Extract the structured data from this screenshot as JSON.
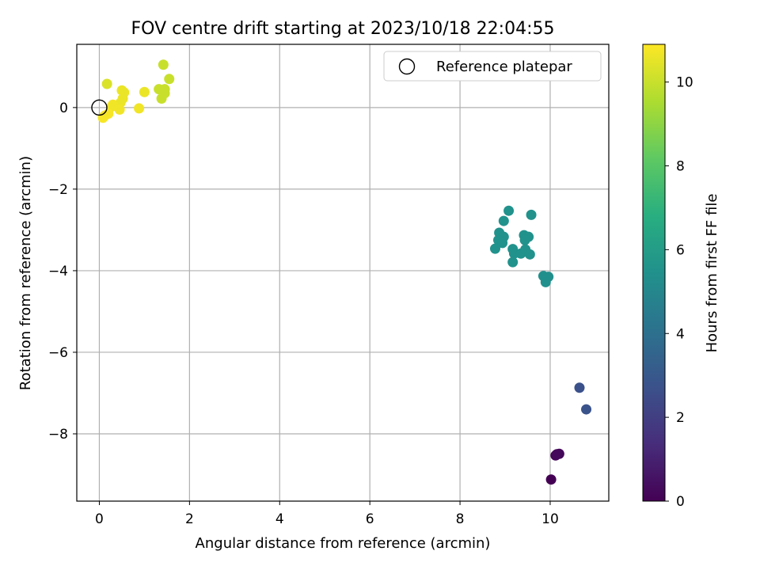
{
  "chart_data": {
    "type": "scatter",
    "title": "FOV centre drift starting at 2023/10/18 22:04:55",
    "xlabel": "Angular distance from reference (arcmin)",
    "ylabel": "Rotation from reference (arcmin)",
    "xlim": [
      -0.5,
      11.3
    ],
    "ylim": [
      -9.65,
      1.55
    ],
    "x_ticks": [
      0,
      2,
      4,
      6,
      8,
      10
    ],
    "y_ticks": [
      -8,
      -6,
      -4,
      -2,
      0
    ],
    "grid": true,
    "legend": {
      "entries": [
        "Reference platepar"
      ],
      "placement": "top-right"
    },
    "reference_point": {
      "x": 0,
      "y": 0,
      "marker": "open circle"
    },
    "colorbar": {
      "label": "Hours from first FF file",
      "range": [
        0,
        10.9
      ],
      "ticks": [
        0,
        2,
        4,
        6,
        8,
        10
      ],
      "colormap": "viridis"
    },
    "points": [
      {
        "x": 10.02,
        "y": -9.12,
        "t": 0.0
      },
      {
        "x": 10.12,
        "y": -8.53,
        "t": 0.1
      },
      {
        "x": 10.2,
        "y": -8.49,
        "t": 0.2
      },
      {
        "x": 10.15,
        "y": -8.5,
        "t": 0.25
      },
      {
        "x": 10.65,
        "y": -6.87,
        "t": 2.7
      },
      {
        "x": 10.8,
        "y": -7.4,
        "t": 2.75
      },
      {
        "x": 9.08,
        "y": -2.53,
        "t": 5.5
      },
      {
        "x": 9.58,
        "y": -2.63,
        "t": 5.5
      },
      {
        "x": 8.97,
        "y": -2.78,
        "t": 5.5
      },
      {
        "x": 8.87,
        "y": -3.07,
        "t": 5.5
      },
      {
        "x": 8.97,
        "y": -3.17,
        "t": 5.5
      },
      {
        "x": 8.85,
        "y": -3.25,
        "t": 5.5
      },
      {
        "x": 8.94,
        "y": -3.32,
        "t": 5.5
      },
      {
        "x": 8.78,
        "y": -3.46,
        "t": 5.5
      },
      {
        "x": 9.42,
        "y": -3.13,
        "t": 5.5
      },
      {
        "x": 9.52,
        "y": -3.17,
        "t": 5.5
      },
      {
        "x": 9.44,
        "y": -3.25,
        "t": 5.5
      },
      {
        "x": 9.17,
        "y": -3.47,
        "t": 5.5
      },
      {
        "x": 9.2,
        "y": -3.58,
        "t": 5.5
      },
      {
        "x": 9.35,
        "y": -3.58,
        "t": 5.5
      },
      {
        "x": 9.45,
        "y": -3.48,
        "t": 5.5
      },
      {
        "x": 9.55,
        "y": -3.6,
        "t": 5.5
      },
      {
        "x": 9.17,
        "y": -3.79,
        "t": 5.5
      },
      {
        "x": 9.85,
        "y": -4.13,
        "t": 5.4
      },
      {
        "x": 9.96,
        "y": -4.15,
        "t": 5.4
      },
      {
        "x": 9.9,
        "y": -4.28,
        "t": 5.4
      },
      {
        "x": 1.42,
        "y": 1.05,
        "t": 10.0
      },
      {
        "x": 1.55,
        "y": 0.7,
        "t": 10.0
      },
      {
        "x": 0.17,
        "y": 0.58,
        "t": 10.3
      },
      {
        "x": 1.45,
        "y": 0.45,
        "t": 10.0
      },
      {
        "x": 1.32,
        "y": 0.45,
        "t": 10.0
      },
      {
        "x": 1.45,
        "y": 0.35,
        "t": 10.0
      },
      {
        "x": 1.38,
        "y": 0.22,
        "t": 10.0
      },
      {
        "x": 0.5,
        "y": 0.42,
        "t": 10.6
      },
      {
        "x": 0.55,
        "y": 0.37,
        "t": 10.6
      },
      {
        "x": 1.0,
        "y": 0.38,
        "t": 10.6
      },
      {
        "x": 0.52,
        "y": 0.22,
        "t": 10.6
      },
      {
        "x": 0.47,
        "y": 0.12,
        "t": 10.6
      },
      {
        "x": 0.3,
        "y": 0.07,
        "t": 10.7
      },
      {
        "x": 0.27,
        "y": 0.02,
        "t": 10.7
      },
      {
        "x": 0.88,
        "y": -0.02,
        "t": 10.7
      },
      {
        "x": 0.45,
        "y": -0.05,
        "t": 10.7
      },
      {
        "x": 0.2,
        "y": -0.15,
        "t": 10.8
      },
      {
        "x": 0.12,
        "y": -0.2,
        "t": 10.8
      },
      {
        "x": 0.08,
        "y": -0.25,
        "t": 10.8
      }
    ]
  }
}
